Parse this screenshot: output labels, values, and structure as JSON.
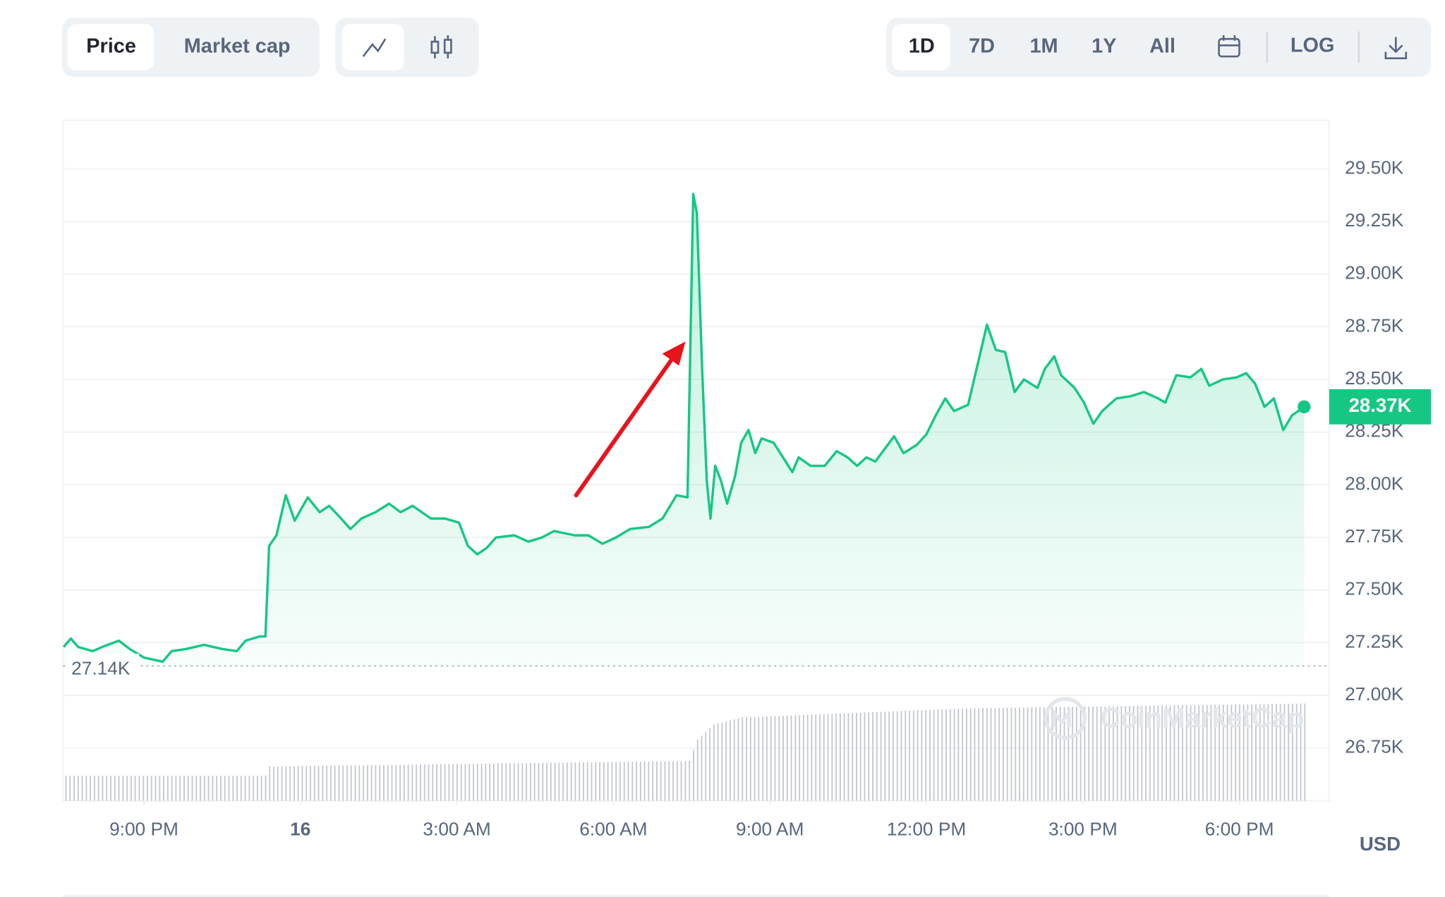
{
  "toolbar": {
    "metric_tabs": [
      "Price",
      "Market cap"
    ],
    "range_tabs": [
      "1D",
      "7D",
      "1M",
      "1Y",
      "All"
    ],
    "log_button": "LOG"
  },
  "chart_data": {
    "type": "line",
    "y_label": "USD",
    "watermark": "CoinMarketCap",
    "xlim": [
      19.45,
      43.72
    ],
    "ylim": [
      26500,
      29730
    ],
    "grid": true,
    "xticks": [
      {
        "value": 21,
        "label": "9:00 PM"
      },
      {
        "value": 24,
        "label": "16"
      },
      {
        "value": 27,
        "label": "3:00 AM"
      },
      {
        "value": 30,
        "label": "6:00 AM"
      },
      {
        "value": 33,
        "label": "9:00 AM"
      },
      {
        "value": 36,
        "label": "12:00 PM"
      },
      {
        "value": 39,
        "label": "3:00 PM"
      },
      {
        "value": 42,
        "label": "6:00 PM"
      }
    ],
    "yticks": [
      {
        "value": 29500,
        "label": "29.50K"
      },
      {
        "value": 29250,
        "label": "29.25K"
      },
      {
        "value": 29000,
        "label": "29.00K"
      },
      {
        "value": 28750,
        "label": "28.75K"
      },
      {
        "value": 28500,
        "label": "28.50K"
      },
      {
        "value": 28250,
        "label": "28.25K"
      },
      {
        "value": 28000,
        "label": "28.00K"
      },
      {
        "value": 27750,
        "label": "27.75K"
      },
      {
        "value": 27500,
        "label": "27.50K"
      },
      {
        "value": 27250,
        "label": "27.25K"
      },
      {
        "value": 27000,
        "label": "27.00K"
      },
      {
        "value": 26750,
        "label": "26.75K"
      }
    ],
    "annotations": [
      {
        "value": 27140,
        "label": "27.14K"
      },
      {
        "value": 28370,
        "label": "28.37K"
      }
    ],
    "series": [
      {
        "color": "#16c784",
        "x": [
          19.46,
          19.6,
          19.74,
          20.02,
          20.2,
          20.52,
          20.73,
          21.0,
          21.36,
          21.53,
          21.8,
          22.15,
          22.51,
          22.78,
          22.95,
          23.22,
          23.33,
          23.4,
          23.54,
          23.72,
          23.89,
          24.14,
          24.37,
          24.55,
          24.78,
          24.96,
          25.17,
          25.44,
          25.7,
          25.92,
          26.15,
          26.5,
          26.77,
          27.04,
          27.21,
          27.39,
          27.57,
          27.75,
          28.1,
          28.37,
          28.63,
          28.86,
          29.26,
          29.52,
          29.79,
          30.05,
          30.32,
          30.68,
          30.94,
          31.21,
          31.42,
          31.53,
          31.6,
          31.7,
          31.79,
          31.86,
          31.95,
          32.06,
          32.18,
          32.33,
          32.45,
          32.59,
          32.72,
          32.84,
          33.07,
          33.25,
          33.43,
          33.55,
          33.78,
          34.05,
          34.28,
          34.49,
          34.67,
          34.85,
          35.02,
          35.2,
          35.38,
          35.56,
          35.82,
          36.0,
          36.18,
          36.36,
          36.53,
          36.8,
          36.98,
          37.16,
          37.33,
          37.51,
          37.69,
          37.87,
          38.13,
          38.27,
          38.45,
          38.58,
          38.84,
          39.02,
          39.2,
          39.37,
          39.64,
          39.91,
          40.17,
          40.44,
          40.58,
          40.79,
          41.06,
          41.27,
          41.42,
          41.68,
          41.95,
          42.13,
          42.3,
          42.48,
          42.66,
          42.84,
          43.01,
          43.24
        ],
        "values": [
          27230,
          27270,
          27230,
          27210,
          27230,
          27260,
          27220,
          27180,
          27160,
          27210,
          27220,
          27240,
          27220,
          27210,
          27260,
          27280,
          27280,
          27710,
          27760,
          27950,
          27830,
          27940,
          27870,
          27900,
          27840,
          27790,
          27840,
          27870,
          27910,
          27870,
          27900,
          27840,
          27840,
          27820,
          27710,
          27670,
          27700,
          27750,
          27760,
          27730,
          27750,
          27780,
          27760,
          27760,
          27720,
          27750,
          27790,
          27800,
          27840,
          27950,
          27940,
          29380,
          29290,
          28550,
          28020,
          27840,
          28090,
          28020,
          27910,
          28040,
          28200,
          28260,
          28150,
          28220,
          28200,
          28130,
          28060,
          28130,
          28090,
          28090,
          28160,
          28130,
          28090,
          28130,
          28110,
          28170,
          28230,
          28150,
          28190,
          28240,
          28330,
          28410,
          28350,
          28380,
          28570,
          28760,
          28640,
          28630,
          28440,
          28500,
          28460,
          28550,
          28610,
          28520,
          28460,
          28390,
          28290,
          28350,
          28410,
          28420,
          28440,
          28410,
          28390,
          28520,
          28510,
          28550,
          28470,
          28500,
          28510,
          28530,
          28480,
          28370,
          28410,
          28260,
          28330,
          28370
        ]
      }
    ]
  }
}
